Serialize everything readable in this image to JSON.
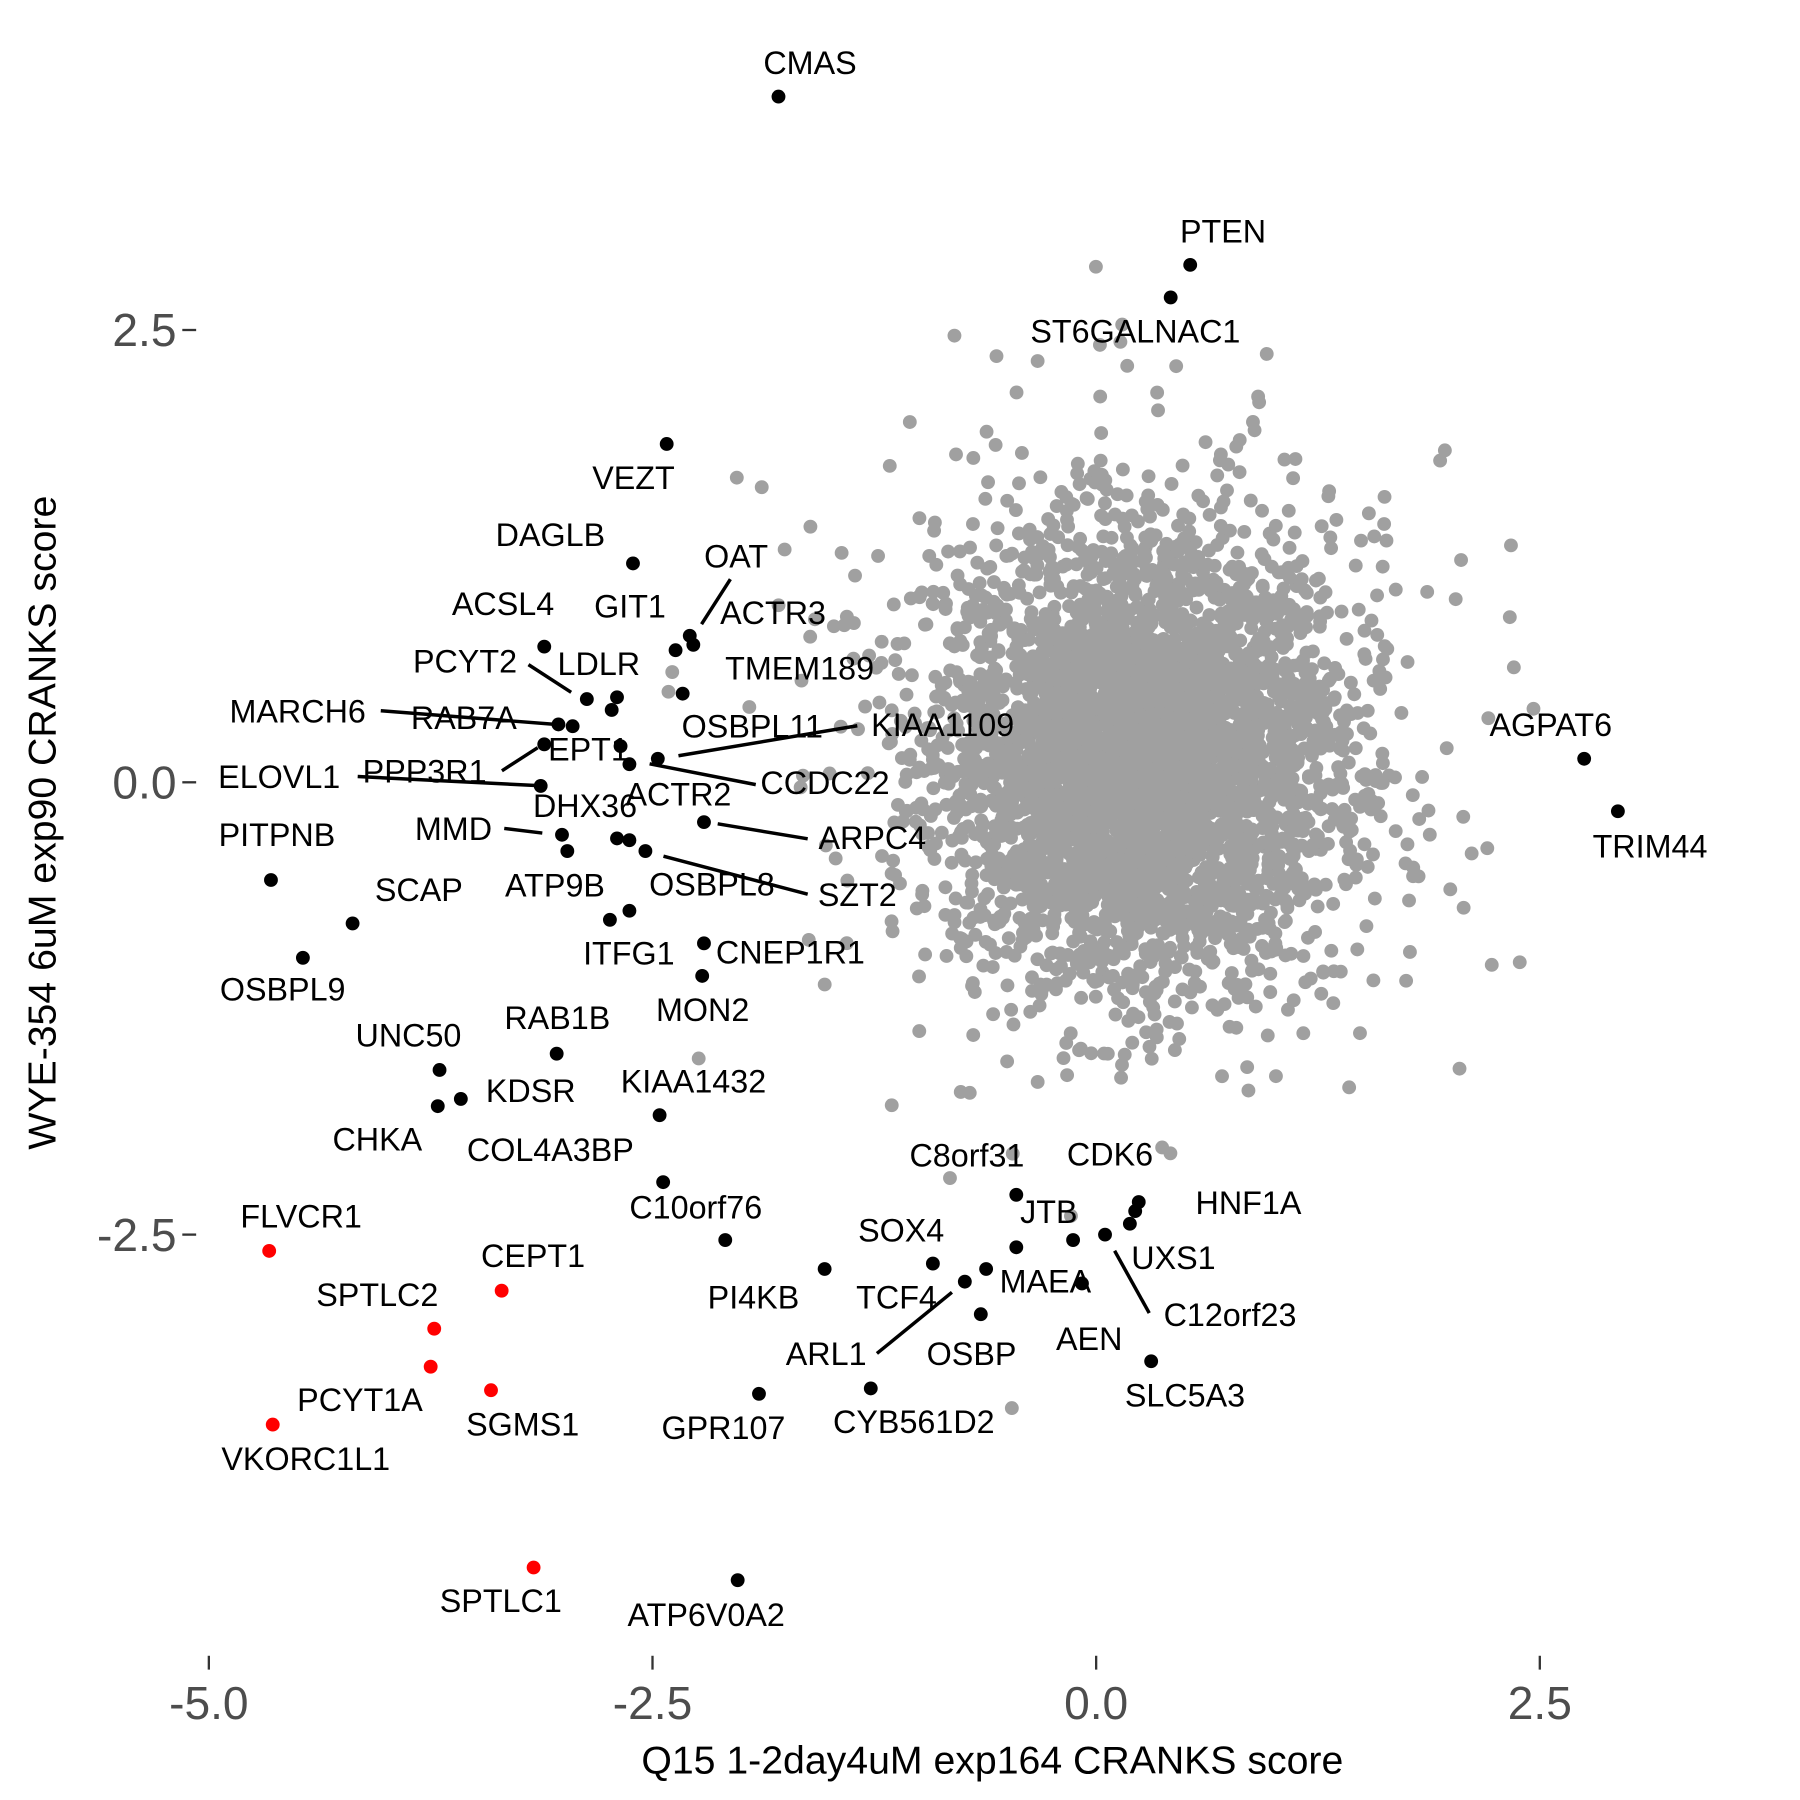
{
  "chart_data": {
    "type": "scatter",
    "xlabel": "Q15 1-2day4uM exp164 CRANKS score",
    "ylabel": "WYE-354 6uM exp90 CRANKS score",
    "xlim": [
      -5.2,
      3.6
    ],
    "ylim": [
      -4.8,
      4.1
    ],
    "x_ticks": [
      -5.0,
      -2.5,
      0.0,
      2.5
    ],
    "x_tick_labels": [
      "-5.0",
      "-2.5",
      "0.0",
      "2.5"
    ],
    "y_ticks": [
      2.5,
      0.0,
      -2.5
    ],
    "y_tick_labels": [
      "2.5",
      "0.0",
      "-2.5"
    ],
    "grid": false,
    "colors": {
      "background_points": "#a0a0a0",
      "highlight": "#000000",
      "red": "#ff0000"
    },
    "labeled_points": [
      {
        "name": "CMAS",
        "x": -1.79,
        "y": 3.79,
        "color": "black"
      },
      {
        "name": "PTEN",
        "x": 0.53,
        "y": 2.86,
        "color": "black"
      },
      {
        "name": "ST6GALNAC1",
        "x": 0.42,
        "y": 2.68,
        "color": "black"
      },
      {
        "name": "VEZT",
        "x": -2.42,
        "y": 1.87,
        "color": "black"
      },
      {
        "name": "DAGLB",
        "x": -2.61,
        "y": 1.21,
        "color": "black"
      },
      {
        "name": "OAT",
        "x": -2.29,
        "y": 0.81,
        "color": "black"
      },
      {
        "name": "ACTR3",
        "x": -2.27,
        "y": 0.76,
        "color": "black"
      },
      {
        "name": "GIT1",
        "x": -2.37,
        "y": 0.73,
        "color": "black"
      },
      {
        "name": "ACSL4",
        "x": -3.11,
        "y": 0.75,
        "color": "black"
      },
      {
        "name": "TMEM189",
        "x": -2.33,
        "y": 0.49,
        "color": "black"
      },
      {
        "name": "PCYT2",
        "x": -2.87,
        "y": 0.46,
        "color": "black"
      },
      {
        "name": "LDLR",
        "x": -2.7,
        "y": 0.47,
        "color": "black"
      },
      {
        "name": "MARCH6",
        "x": -3.03,
        "y": 0.32,
        "color": "black"
      },
      {
        "name": "RAB7A",
        "x": -2.95,
        "y": 0.31,
        "color": "black"
      },
      {
        "name": "EPT1",
        "x": -3.11,
        "y": 0.21,
        "color": "black"
      },
      {
        "name": "OSBPL11",
        "x": -2.73,
        "y": 0.4,
        "color": "black"
      },
      {
        "name": "KIAA1109",
        "x": -2.47,
        "y": 0.13,
        "color": "black"
      },
      {
        "name": "PPP3R1",
        "x": -2.68,
        "y": 0.2,
        "color": "black"
      },
      {
        "name": "ELOVL1",
        "x": -3.13,
        "y": -0.02,
        "color": "black"
      },
      {
        "name": "CCDC22",
        "x": -2.63,
        "y": 0.1,
        "color": "black"
      },
      {
        "name": "ACTR2",
        "x": -2.63,
        "y": -0.32,
        "color": "black"
      },
      {
        "name": "DHX36",
        "x": -2.7,
        "y": -0.31,
        "color": "black"
      },
      {
        "name": "MMD",
        "x": -3.01,
        "y": -0.29,
        "color": "black"
      },
      {
        "name": "ARPC4",
        "x": -2.21,
        "y": -0.22,
        "color": "black"
      },
      {
        "name": "ATP9B",
        "x": -2.98,
        "y": -0.38,
        "color": "black"
      },
      {
        "name": "OSBPL8",
        "x": -2.63,
        "y": -0.71,
        "color": "black"
      },
      {
        "name": "SZT2",
        "x": -2.54,
        "y": -0.38,
        "color": "black"
      },
      {
        "name": "ITFG1",
        "x": -2.74,
        "y": -0.76,
        "color": "black"
      },
      {
        "name": "CNEP1R1",
        "x": -2.21,
        "y": -0.89,
        "color": "black"
      },
      {
        "name": "MON2",
        "x": -2.22,
        "y": -1.07,
        "color": "black"
      },
      {
        "name": "PITPNB",
        "x": -4.65,
        "y": -0.54,
        "color": "black"
      },
      {
        "name": "SCAP",
        "x": -4.19,
        "y": -0.78,
        "color": "black"
      },
      {
        "name": "OSBPL9",
        "x": -4.47,
        "y": -0.97,
        "color": "black"
      },
      {
        "name": "UNC50",
        "x": -3.7,
        "y": -1.59,
        "color": "black"
      },
      {
        "name": "RAB1B",
        "x": -3.04,
        "y": -1.5,
        "color": "black"
      },
      {
        "name": "KDSR",
        "x": -3.58,
        "y": -1.75,
        "color": "black"
      },
      {
        "name": "CHKA",
        "x": -3.71,
        "y": -1.79,
        "color": "black"
      },
      {
        "name": "KIAA1432",
        "x": -2.46,
        "y": -1.84,
        "color": "black"
      },
      {
        "name": "COL4A3BP",
        "x": -2.44,
        "y": -2.21,
        "color": "black"
      },
      {
        "name": "C10orf76",
        "x": -2.09,
        "y": -2.53,
        "color": "black"
      },
      {
        "name": "FLVCR1",
        "x": -4.66,
        "y": -2.59,
        "color": "red"
      },
      {
        "name": "CEPT1",
        "x": -3.35,
        "y": -2.81,
        "color": "red"
      },
      {
        "name": "SPTLC2",
        "x": -3.73,
        "y": -3.02,
        "color": "red"
      },
      {
        "name": "PCYT1A",
        "x": -3.75,
        "y": -3.23,
        "color": "red"
      },
      {
        "name": "SGMS1",
        "x": -3.41,
        "y": -3.36,
        "color": "red"
      },
      {
        "name": "VKORC1L1",
        "x": -4.64,
        "y": -3.55,
        "color": "red"
      },
      {
        "name": "SPTLC1",
        "x": -3.17,
        "y": -4.34,
        "color": "red"
      },
      {
        "name": "ATP6V0A2",
        "x": -2.02,
        "y": -4.41,
        "color": "black"
      },
      {
        "name": "GPR107",
        "x": -1.9,
        "y": -3.38,
        "color": "black"
      },
      {
        "name": "PI4KB",
        "x": -1.53,
        "y": -2.69,
        "color": "black"
      },
      {
        "name": "CYB561D2",
        "x": -1.27,
        "y": -3.35,
        "color": "black"
      },
      {
        "name": "SOX4",
        "x": -0.92,
        "y": -2.66,
        "color": "black"
      },
      {
        "name": "TCF4",
        "x": -0.74,
        "y": -2.76,
        "color": "black"
      },
      {
        "name": "ARL1",
        "x": -0.62,
        "y": -2.69,
        "color": "black"
      },
      {
        "name": "MAEA",
        "x": -0.45,
        "y": -2.57,
        "color": "black"
      },
      {
        "name": "OSBP",
        "x": -0.65,
        "y": -2.94,
        "color": "black"
      },
      {
        "name": "C8orf31",
        "x": -0.45,
        "y": -2.28,
        "color": "black"
      },
      {
        "name": "CDK6",
        "x": 0.19,
        "y": -2.44,
        "color": "black"
      },
      {
        "name": "JTB",
        "x": -0.13,
        "y": -2.53,
        "color": "black"
      },
      {
        "name": "AEN",
        "x": -0.08,
        "y": -2.77,
        "color": "black"
      },
      {
        "name": "UXS1",
        "x": 0.05,
        "y": -2.5,
        "color": "black"
      },
      {
        "name": "C12orf23",
        "x": 0.22,
        "y": -2.37,
        "color": "black"
      },
      {
        "name": "SLC5A3",
        "x": 0.31,
        "y": -3.2,
        "color": "black"
      },
      {
        "name": "HNF1A",
        "x": 0.24,
        "y": -2.32,
        "color": "black"
      },
      {
        "name": "AGPAT6",
        "x": 2.75,
        "y": 0.13,
        "color": "black"
      },
      {
        "name": "TRIM44",
        "x": 2.94,
        "y": -0.16,
        "color": "black"
      }
    ]
  }
}
